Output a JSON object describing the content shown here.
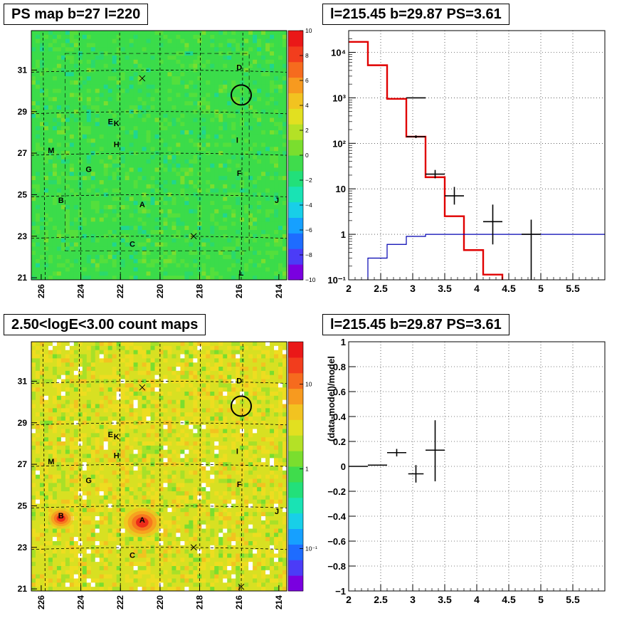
{
  "titles": {
    "ps_map": "PS map b=27 l=220",
    "spectrum": "l=215.45 b=29.87 PS=3.61",
    "count_map": "2.50<logE<3.00 count maps",
    "residual": "l=215.45 b=29.87 PS=3.61"
  },
  "chart_data": [
    {
      "id": "ps_map",
      "type": "heatmap",
      "title": "PS map b=27 l=220",
      "x_ticks": [
        "226",
        "224",
        "222",
        "220",
        "218",
        "216",
        "214"
      ],
      "y_ticks": [
        "21",
        "23",
        "25",
        "27",
        "29",
        "31"
      ],
      "xlim": [
        226.5,
        213.6
      ],
      "ylim": [
        20.9,
        32.9
      ],
      "colorbar": {
        "range": [
          -10,
          10
        ],
        "ticks": [
          "10",
          "8",
          "6",
          "4",
          "2",
          "0",
          "−2",
          "−4",
          "−6",
          "−8",
          "−10"
        ],
        "colors": [
          "#7a00e0",
          "#4b3cf7",
          "#1e6cff",
          "#16a0ff",
          "#18cfe8",
          "#19e3b4",
          "#22e07a",
          "#3fdc4c",
          "#7ade2e",
          "#b4e126",
          "#e2e020",
          "#f2c320",
          "#f79a1f",
          "#f66b1e",
          "#f23d1d",
          "#ea1818"
        ]
      },
      "sources": [
        {
          "label": "A",
          "l": 220.9,
          "b": 24.4
        },
        {
          "label": "B",
          "l": 225.0,
          "b": 24.6
        },
        {
          "label": "C",
          "l": 221.4,
          "b": 22.5
        },
        {
          "label": "D",
          "l": 216.0,
          "b": 31.0
        },
        {
          "label": "E",
          "l": 222.5,
          "b": 28.4
        },
        {
          "label": "K",
          "l": 222.2,
          "b": 28.3
        },
        {
          "label": "F",
          "l": 216.0,
          "b": 25.9
        },
        {
          "label": "G",
          "l": 223.6,
          "b": 26.1
        },
        {
          "label": "H",
          "l": 222.2,
          "b": 27.3
        },
        {
          "label": "I",
          "l": 216.1,
          "b": 27.5
        },
        {
          "label": "J",
          "l": 214.1,
          "b": 24.6
        },
        {
          "label": "L",
          "l": 215.9,
          "b": 21.1
        },
        {
          "label": "M",
          "l": 225.5,
          "b": 27.0
        }
      ],
      "crosses": [
        {
          "l": 220.9,
          "b": 30.6
        },
        {
          "l": 218.3,
          "b": 23.0
        }
      ],
      "circle": {
        "l": 215.9,
        "b": 29.8
      }
    },
    {
      "id": "spectrum",
      "type": "line",
      "title": "l=215.45 b=29.87 PS=3.61",
      "xlim": [
        2,
        6
      ],
      "ylim": [
        0.1,
        30000
      ],
      "yscale": "log",
      "x_ticks": [
        "2",
        "2.5",
        "3",
        "3.5",
        "4",
        "4.5",
        "5",
        "5.5"
      ],
      "y_ticks": [
        "10⁻¹",
        "1",
        "10",
        "10²",
        "10³",
        "10⁴"
      ],
      "grid": true,
      "series": [
        {
          "color": "#e00000",
          "style": "step",
          "edges": [
            2.0,
            2.3,
            2.6,
            2.9,
            3.2,
            3.5,
            3.8,
            4.1,
            4.4,
            6.0
          ],
          "values": [
            17000,
            5200,
            950,
            140,
            18,
            2.5,
            0.45,
            0.13,
            0.08
          ]
        },
        {
          "color": "#0000b0",
          "style": "step",
          "edges": [
            2.0,
            2.3,
            2.6,
            2.9,
            3.2,
            6.0
          ],
          "values": [
            0.05,
            0.3,
            0.6,
            0.9,
            1.0
          ]
        }
      ],
      "points": [
        {
          "x": 3.05,
          "y": 1000,
          "xerr": 0.15,
          "ylo": 1000,
          "yhi": 1000
        },
        {
          "x": 3.05,
          "y": 140,
          "xerr": 0.15,
          "ylo": 130,
          "yhi": 150
        },
        {
          "x": 3.35,
          "y": 21,
          "xerr": 0.15,
          "ylo": 17,
          "yhi": 26
        },
        {
          "x": 3.65,
          "y": 7,
          "xerr": 0.15,
          "ylo": 4.5,
          "yhi": 11
        },
        {
          "x": 4.25,
          "y": 1.9,
          "xerr": 0.15,
          "ylo": 0.6,
          "yhi": 4.5
        },
        {
          "x": 4.85,
          "y": 1.0,
          "xerr": 0.15,
          "ylo": 0.1,
          "yhi": 2.1
        }
      ]
    },
    {
      "id": "count_map",
      "type": "heatmap",
      "title": "2.50<logE<3.00 count maps",
      "x_ticks": [
        "226",
        "224",
        "222",
        "220",
        "218",
        "216",
        "214"
      ],
      "y_ticks": [
        "21",
        "23",
        "25",
        "27",
        "29",
        "31"
      ],
      "xlim": [
        226.5,
        213.6
      ],
      "ylim": [
        20.9,
        32.9
      ],
      "colorbar": {
        "scale": "log",
        "ticks": [
          "10",
          "1",
          "10⁻¹"
        ],
        "colors": [
          "#7a00e0",
          "#4b3cf7",
          "#1e6cff",
          "#16a0ff",
          "#18cfe8",
          "#19e3b4",
          "#22e07a",
          "#3fdc4c",
          "#7ade2e",
          "#b4e126",
          "#e2e020",
          "#f2c320",
          "#f79a1f",
          "#f66b1e",
          "#f23d1d",
          "#ea1818"
        ]
      },
      "sources": [
        {
          "label": "A",
          "l": 220.9,
          "b": 24.2
        },
        {
          "label": "B",
          "l": 225.0,
          "b": 24.4
        },
        {
          "label": "C",
          "l": 221.4,
          "b": 22.5
        },
        {
          "label": "D",
          "l": 216.0,
          "b": 30.9
        },
        {
          "label": "E",
          "l": 222.5,
          "b": 28.3
        },
        {
          "label": "K",
          "l": 222.2,
          "b": 28.2
        },
        {
          "label": "F",
          "l": 216.0,
          "b": 25.9
        },
        {
          "label": "G",
          "l": 223.6,
          "b": 26.1
        },
        {
          "label": "H",
          "l": 222.2,
          "b": 27.3
        },
        {
          "label": "I",
          "l": 216.1,
          "b": 27.5
        },
        {
          "label": "J",
          "l": 214.1,
          "b": 24.6
        },
        {
          "label": "M",
          "l": 225.5,
          "b": 27.0
        }
      ],
      "crosses": [
        {
          "l": 220.9,
          "b": 30.7
        },
        {
          "l": 218.3,
          "b": 23.0
        },
        {
          "l": 215.9,
          "b": 21.1
        }
      ],
      "circle": {
        "l": 215.9,
        "b": 29.8
      }
    },
    {
      "id": "residual",
      "type": "scatter",
      "title": "l=215.45 b=29.87 PS=3.61",
      "xlim": [
        2,
        6
      ],
      "ylim": [
        -1,
        1
      ],
      "ylabel": "(data-model)/model",
      "x_ticks": [
        "2",
        "2.5",
        "3",
        "3.5",
        "4",
        "4.5",
        "5",
        "5.5"
      ],
      "y_ticks": [
        "−1",
        "−0.8",
        "−0.6",
        "−0.4",
        "−0.2",
        "0",
        "0.2",
        "0.4",
        "0.6",
        "0.8",
        "1"
      ],
      "grid": true,
      "points": [
        {
          "x": 2.15,
          "y": 0.0,
          "xerr": 0.15,
          "ylo": 0.0,
          "yhi": 0.0
        },
        {
          "x": 2.45,
          "y": 0.01,
          "xerr": 0.15,
          "ylo": 0.01,
          "yhi": 0.01
        },
        {
          "x": 2.75,
          "y": 0.11,
          "xerr": 0.15,
          "ylo": 0.08,
          "yhi": 0.14
        },
        {
          "x": 3.05,
          "y": -0.06,
          "xerr": 0.12,
          "ylo": -0.13,
          "yhi": 0.01
        },
        {
          "x": 3.35,
          "y": 0.13,
          "xerr": 0.15,
          "ylo": -0.12,
          "yhi": 0.37
        }
      ]
    }
  ]
}
